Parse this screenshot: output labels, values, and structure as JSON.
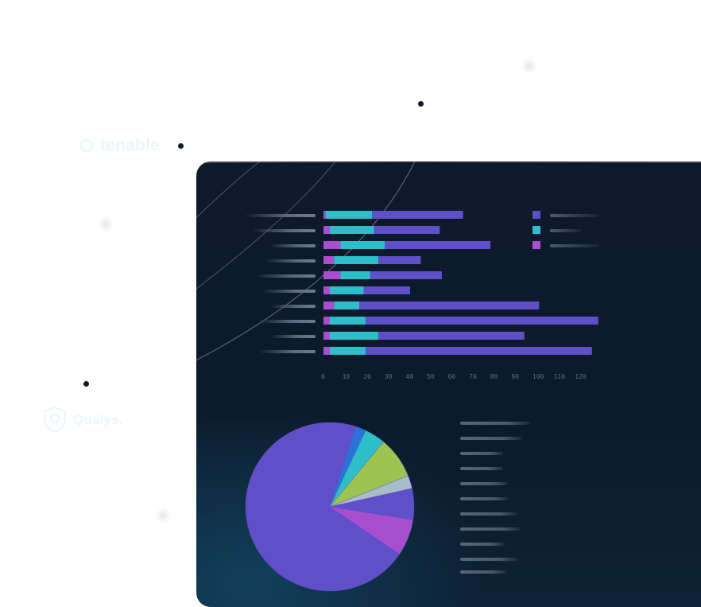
{
  "logos": {
    "top_right": "",
    "tenable": "tenable",
    "lower_left": "Qualys."
  },
  "colors": {
    "magenta": "#a84fd0",
    "teal": "#2dbec9",
    "purple": "#5f4fc9",
    "blue": "#2a73d6",
    "lime": "#9cc451",
    "silver": "#a9bcc9",
    "panel_bg": "#0e1a2b"
  },
  "chart_data": [
    {
      "type": "bar",
      "orientation": "horizontal",
      "stacked": true,
      "series": [
        {
          "values": [
            1,
            3,
            8,
            5,
            8,
            3,
            5,
            3,
            3,
            3
          ]
        },
        {
          "values": [
            22,
            21,
            21,
            21,
            14,
            16,
            12,
            17,
            23,
            17
          ]
        },
        {
          "values": [
            43,
            31,
            50,
            20,
            34,
            22,
            85,
            110,
            69,
            107
          ]
        }
      ],
      "xlim": [
        0,
        130
      ],
      "xticks": [
        "0",
        "10",
        "20",
        "30",
        "40",
        "50",
        "60",
        "70",
        "80",
        "90",
        "100",
        "110",
        "120"
      ]
    },
    {
      "type": "pie",
      "values": [
        2,
        4,
        8,
        2.5,
        6,
        7,
        70.5
      ]
    }
  ]
}
